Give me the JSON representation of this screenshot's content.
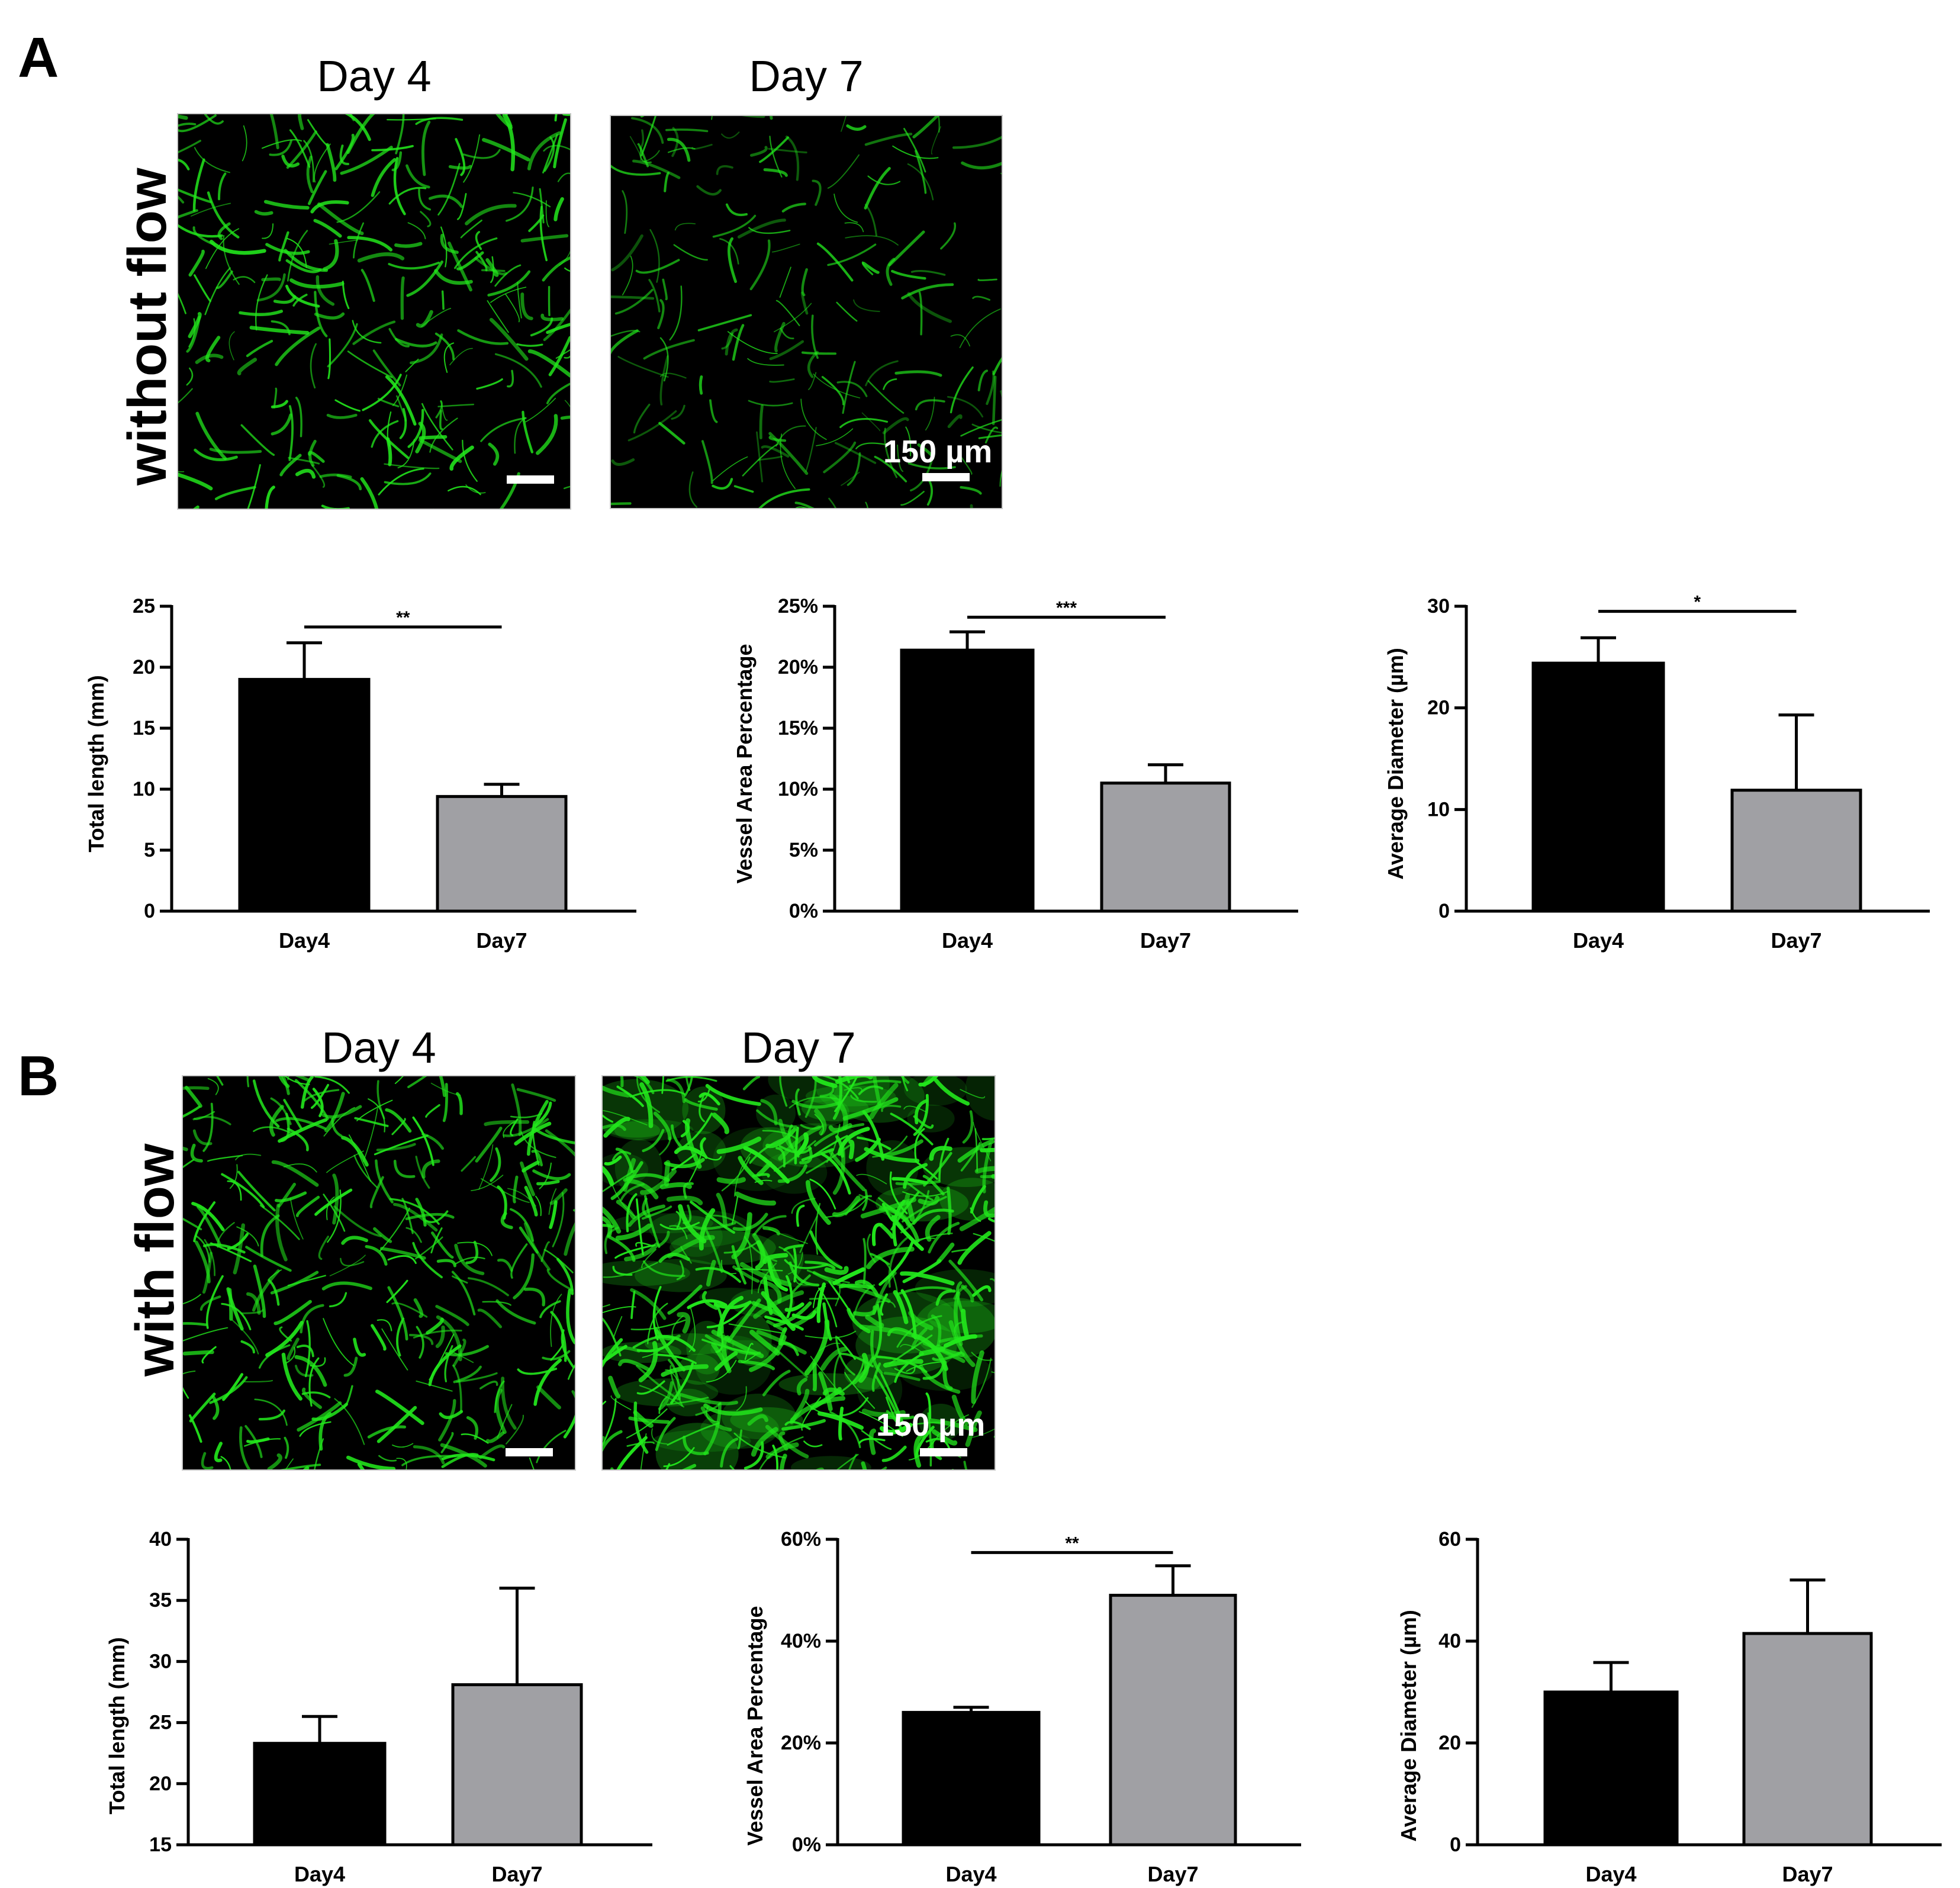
{
  "panels": [
    {
      "letter": "A",
      "row_label": "without  flow",
      "images": [
        {
          "title": "Day 4",
          "scale_label": ""
        },
        {
          "title": "Day 7",
          "scale_label": "150 µm"
        }
      ]
    },
    {
      "letter": "B",
      "row_label": "with flow",
      "images": [
        {
          "title": "Day 4",
          "scale_label": ""
        },
        {
          "title": "Day 7",
          "scale_label": "150 µm"
        }
      ]
    }
  ],
  "colors": {
    "fluorescence": "#22e81c",
    "day4_bar": "#000000",
    "day7_bar": "#a0a0a4"
  },
  "chart_data": [
    {
      "type": "bar",
      "panel": "A",
      "ylabel": "Total length (mm)",
      "categories": [
        "Day4",
        "Day7"
      ],
      "values": [
        19,
        9.4
      ],
      "errors": [
        3,
        1
      ],
      "ylim": [
        0,
        25
      ],
      "yticks": [
        0,
        5,
        10,
        15,
        20,
        25
      ],
      "ytick_labels": [
        "0",
        "5",
        "10",
        "15",
        "20",
        "25"
      ],
      "significance": "**",
      "sig_level": 23.3
    },
    {
      "type": "bar",
      "panel": "A",
      "ylabel": "Vessel Area Percentage",
      "categories": [
        "Day4",
        "Day7"
      ],
      "values": [
        21.4,
        10.5
      ],
      "errors": [
        1.5,
        1.5
      ],
      "ylim": [
        0,
        25
      ],
      "yticks": [
        0,
        5,
        10,
        15,
        20,
        25
      ],
      "ytick_labels": [
        "0%",
        "5%",
        "10%",
        "15%",
        "20%",
        "25%"
      ],
      "significance": "***",
      "sig_level": 24.1
    },
    {
      "type": "bar",
      "panel": "A",
      "ylabel": "Average Diameter (µm)",
      "categories": [
        "Day4",
        "Day7"
      ],
      "values": [
        24.4,
        11.9
      ],
      "errors": [
        2.5,
        7.4
      ],
      "ylim": [
        0,
        30
      ],
      "yticks": [
        0,
        10,
        20,
        30
      ],
      "ytick_labels": [
        "0",
        "10",
        "20",
        "30"
      ],
      "significance": "*",
      "sig_level": 29.5
    },
    {
      "type": "bar",
      "panel": "B",
      "ylabel": "Total length (mm)",
      "categories": [
        "Day4",
        "Day7"
      ],
      "values": [
        23.3,
        28.1
      ],
      "errors": [
        2.2,
        7.9
      ],
      "ylim": [
        15,
        40
      ],
      "yticks": [
        15,
        20,
        25,
        30,
        35,
        40
      ],
      "ytick_labels": [
        "15",
        "20",
        "25",
        "30",
        "35",
        "40"
      ],
      "significance": "",
      "sig_level": null
    },
    {
      "type": "bar",
      "panel": "B",
      "ylabel": "Vessel Area Percentage",
      "categories": [
        "Day4",
        "Day7"
      ],
      "values": [
        26,
        49
      ],
      "errors": [
        1,
        5.8
      ],
      "ylim": [
        0,
        60
      ],
      "yticks": [
        0,
        20,
        40,
        60
      ],
      "ytick_labels": [
        "0%",
        "20%",
        "40%",
        "60%"
      ],
      "significance": "**",
      "sig_level": 57.4
    },
    {
      "type": "bar",
      "panel": "B",
      "ylabel": "Average Diameter (µm)",
      "categories": [
        "Day4",
        "Day7"
      ],
      "values": [
        30,
        41.5
      ],
      "errors": [
        5.8,
        10.5
      ],
      "ylim": [
        0,
        60
      ],
      "yticks": [
        0,
        20,
        40,
        60
      ],
      "ytick_labels": [
        "0",
        "20",
        "40",
        "60"
      ],
      "significance": "",
      "sig_level": null
    }
  ]
}
